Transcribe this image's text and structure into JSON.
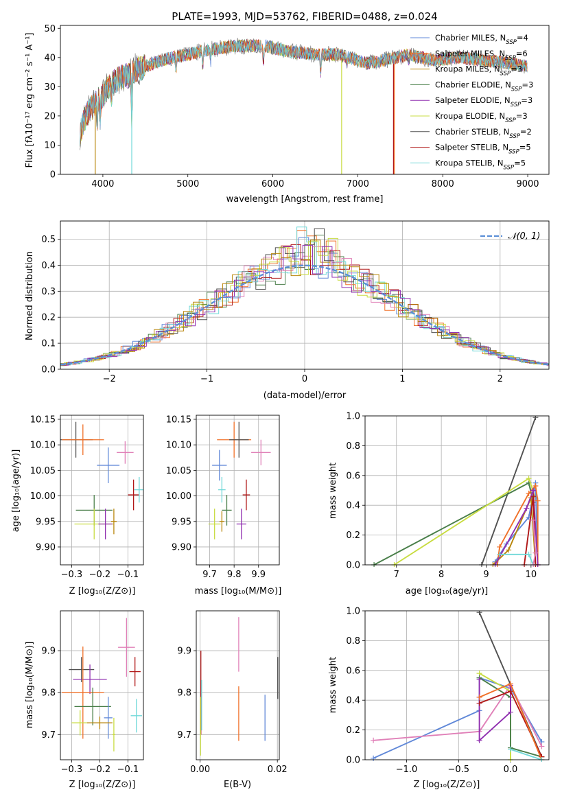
{
  "colors": [
    "#6088d8",
    "#f07028",
    "#b8860b",
    "#4a7f4a",
    "#9030b0",
    "#c8dc40",
    "#505050",
    "#b01818",
    "#70d8d8",
    "#e080b8"
  ],
  "chart_data": [
    {
      "id": "spectrum",
      "type": "line",
      "title": "PLATE=1993, MJD=53762, FIBERID=0488, z=0.024",
      "xlabel": "wavelength [Angstrom, rest frame]",
      "ylabel": "Flux [fλ10⁻¹⁷ erg cm⁻² s⁻¹ A⁻¹]",
      "xlim": [
        3500,
        9250
      ],
      "ylim": [
        0,
        51
      ],
      "xticks": [
        "4000",
        "5000",
        "6000",
        "7000",
        "8000",
        "9000"
      ],
      "yticks": [
        "0",
        "10",
        "20",
        "30",
        "40",
        "50"
      ],
      "continuum": [
        [
          3730,
          14
        ],
        [
          3800,
          20
        ],
        [
          3900,
          24
        ],
        [
          4000,
          27
        ],
        [
          4100,
          31
        ],
        [
          4200,
          33
        ],
        [
          4300,
          34
        ],
        [
          4400,
          36
        ],
        [
          4600,
          38
        ],
        [
          4800,
          40
        ],
        [
          5000,
          41
        ],
        [
          5300,
          43
        ],
        [
          5600,
          44
        ],
        [
          5900,
          44
        ],
        [
          6200,
          42
        ],
        [
          6500,
          41
        ],
        [
          6800,
          41
        ],
        [
          7100,
          38
        ],
        [
          7300,
          39
        ],
        [
          7600,
          41
        ],
        [
          7900,
          39
        ],
        [
          8200,
          40
        ],
        [
          8500,
          39
        ],
        [
          8800,
          38
        ],
        [
          9000,
          37
        ]
      ],
      "legend": [
        {
          "name": "Chabrier MILES, N",
          "sub": "SSP",
          "tail": "=4"
        },
        {
          "name": "Salpeter MILES, N",
          "sub": "SSP",
          "tail": "=6"
        },
        {
          "name": "Kroupa MILES, N",
          "sub": "SSP",
          "tail": "=3"
        },
        {
          "name": "Chabrier ELODIE, N",
          "sub": "SSP",
          "tail": "=3"
        },
        {
          "name": "Salpeter ELODIE, N",
          "sub": "SSP",
          "tail": "=3"
        },
        {
          "name": "Kroupa ELODIE, N",
          "sub": "SSP",
          "tail": "=3"
        },
        {
          "name": "Chabrier STELIB, N",
          "sub": "SSP",
          "tail": "=2"
        },
        {
          "name": "Salpeter STELIB, N",
          "sub": "SSP",
          "tail": "=5"
        },
        {
          "name": "Kroupa STELIB, N",
          "sub": "SSP",
          "tail": "=5"
        }
      ]
    },
    {
      "id": "residuals",
      "type": "step",
      "xlabel": "(data-model)/error",
      "ylabel": "Normed distribution",
      "xlim": [
        -2.5,
        2.5
      ],
      "ylim": [
        0,
        0.57
      ],
      "xticks": [
        {
          "v": -2,
          "t": "−2"
        },
        {
          "v": -1,
          "t": "−1"
        },
        {
          "v": 0,
          "t": "0"
        },
        {
          "v": 1,
          "t": "1"
        },
        {
          "v": 2,
          "t": "2"
        }
      ],
      "yticks": [
        "0.0",
        "0.1",
        "0.2",
        "0.3",
        "0.4",
        "0.5"
      ],
      "legend": "𝒩(0, 1)"
    },
    {
      "id": "age-vs-Z",
      "type": "errorbar",
      "xlabel": "Z [log₁₀(Z/Z⊙)]",
      "ylabel": "age  [log₁₀(age/yr)]",
      "xlim": [
        -0.34,
        -0.045
      ],
      "ylim": [
        9.865,
        10.158
      ],
      "xticks": [
        {
          "v": -0.3,
          "t": "−0.3"
        },
        {
          "v": -0.2,
          "t": "−0.2"
        },
        {
          "v": -0.1,
          "t": "−0.1"
        }
      ],
      "yticks": [
        {
          "v": 9.9,
          "t": "9.90"
        },
        {
          "v": 9.95,
          "t": "9.95"
        },
        {
          "v": 10.0,
          "t": "10.00"
        },
        {
          "v": 10.05,
          "t": "10.05"
        },
        {
          "v": 10.1,
          "t": "10.10"
        },
        {
          "v": 10.15,
          "t": "10.15"
        }
      ],
      "points": [
        {
          "c": 6,
          "x": -0.285,
          "y": 10.11,
          "xe": 0.06,
          "ye": 0.035
        },
        {
          "c": 1,
          "x": -0.26,
          "y": 10.11,
          "xe": 0.075,
          "ye": 0.03
        },
        {
          "c": 0,
          "x": -0.17,
          "y": 10.06,
          "xe": 0.04,
          "ye": 0.035
        },
        {
          "c": 9,
          "x": -0.11,
          "y": 10.085,
          "xe": 0.03,
          "ye": 0.022
        },
        {
          "c": 7,
          "x": -0.08,
          "y": 10.002,
          "xe": 0.02,
          "ye": 0.03
        },
        {
          "c": 8,
          "x": -0.06,
          "y": 10.012,
          "xe": 0.018,
          "ye": 0.025
        },
        {
          "c": 3,
          "x": -0.22,
          "y": 9.972,
          "xe": 0.065,
          "ye": 0.03
        },
        {
          "c": 5,
          "x": -0.22,
          "y": 9.945,
          "xe": 0.07,
          "ye": 0.03
        },
        {
          "c": 4,
          "x": -0.18,
          "y": 9.945,
          "xe": 0.025,
          "ye": 0.03
        },
        {
          "c": 2,
          "x": -0.15,
          "y": 9.95,
          "xe": 0.01,
          "ye": 0.025
        }
      ]
    },
    {
      "id": "age-vs-mass",
      "type": "errorbar",
      "xlabel": "mass [log₁₀(M/M⊙)]",
      "xlim": [
        9.645,
        9.985
      ],
      "ylim": [
        9.865,
        10.158
      ],
      "xticks": [
        {
          "v": 9.7,
          "t": "9.7"
        },
        {
          "v": 9.8,
          "t": "9.8"
        },
        {
          "v": 9.9,
          "t": "9.9"
        }
      ],
      "yticks": [
        {
          "v": 9.9,
          "t": "9.90"
        },
        {
          "v": 9.95,
          "t": "9.95"
        },
        {
          "v": 10.0,
          "t": "10.00"
        },
        {
          "v": 10.05,
          "t": "10.05"
        },
        {
          "v": 10.1,
          "t": "10.10"
        },
        {
          "v": 10.15,
          "t": "10.15"
        }
      ],
      "points": [
        {
          "c": 1,
          "x": 9.8,
          "y": 10.11,
          "xe": 0.07,
          "ye": 0.035
        },
        {
          "c": 6,
          "x": 9.82,
          "y": 10.11,
          "xe": 0.04,
          "ye": 0.035
        },
        {
          "c": 9,
          "x": 9.91,
          "y": 10.085,
          "xe": 0.04,
          "ye": 0.025
        },
        {
          "c": 0,
          "x": 9.74,
          "y": 10.06,
          "xe": 0.03,
          "ye": 0.03
        },
        {
          "c": 8,
          "x": 9.75,
          "y": 10.012,
          "xe": 0.015,
          "ye": 0.025
        },
        {
          "c": 7,
          "x": 9.85,
          "y": 10.002,
          "xe": 0.015,
          "ye": 0.03
        },
        {
          "c": 3,
          "x": 9.77,
          "y": 9.972,
          "xe": 0.02,
          "ye": 0.03
        },
        {
          "c": 5,
          "x": 9.72,
          "y": 9.945,
          "xe": 0.025,
          "ye": 0.03
        },
        {
          "c": 4,
          "x": 9.83,
          "y": 9.945,
          "xe": 0.02,
          "ye": 0.03
        },
        {
          "c": 2,
          "x": 9.75,
          "y": 9.95,
          "xe": 0.01,
          "ye": 0.02
        }
      ]
    },
    {
      "id": "mass-weight-vs-age",
      "type": "line",
      "xlabel": "age  [log₁₀(age/yr)]",
      "ylabel": "mass weight",
      "xlim": [
        6.3,
        10.4
      ],
      "ylim": [
        0,
        1.0
      ],
      "xticks": [
        {
          "v": 7,
          "t": "7"
        },
        {
          "v": 8,
          "t": "8"
        },
        {
          "v": 9,
          "t": "9"
        },
        {
          "v": 10,
          "t": "10"
        }
      ],
      "yticks": [
        {
          "v": 0,
          "t": "0.0"
        },
        {
          "v": 0.2,
          "t": "0.2"
        },
        {
          "v": 0.4,
          "t": "0.4"
        },
        {
          "v": 0.6,
          "t": "0.6"
        },
        {
          "v": 0.8,
          "t": "0.8"
        },
        {
          "v": 1.0,
          "t": "1.0"
        }
      ],
      "lines": [
        {
          "c": 6,
          "pts": [
            [
              8.9,
              0.0
            ],
            [
              10.1,
              0.99
            ]
          ]
        },
        {
          "c": 3,
          "pts": [
            [
              6.5,
              0.0
            ],
            [
              9.95,
              0.55
            ],
            [
              10.05,
              0.42
            ]
          ]
        },
        {
          "c": 5,
          "pts": [
            [
              6.95,
              0.0
            ],
            [
              9.95,
              0.58
            ],
            [
              10.1,
              0.45
            ]
          ]
        },
        {
          "c": 0,
          "pts": [
            [
              9.2,
              0.02
            ],
            [
              9.45,
              0.14
            ],
            [
              9.95,
              0.32
            ],
            [
              10.1,
              0.55
            ],
            [
              10.15,
              0.0
            ]
          ]
        },
        {
          "c": 1,
          "pts": [
            [
              9.25,
              0.0
            ],
            [
              9.3,
              0.12
            ],
            [
              9.95,
              0.48
            ],
            [
              10.1,
              0.53
            ],
            [
              10.15,
              0.43
            ],
            [
              10.15,
              0.0
            ]
          ]
        },
        {
          "c": 2,
          "pts": [
            [
              9.15,
              0.0
            ],
            [
              9.5,
              0.1
            ],
            [
              10.0,
              0.45
            ],
            [
              10.1,
              0.0
            ]
          ]
        },
        {
          "c": 4,
          "pts": [
            [
              9.2,
              0.0
            ],
            [
              9.9,
              0.38
            ],
            [
              10.05,
              0.5
            ],
            [
              10.15,
              0.0
            ]
          ]
        },
        {
          "c": 7,
          "pts": [
            [
              9.85,
              0.0
            ],
            [
              10.05,
              0.46
            ],
            [
              10.1,
              0.0
            ]
          ]
        },
        {
          "c": 8,
          "pts": [
            [
              9.3,
              0.07
            ],
            [
              9.95,
              0.07
            ],
            [
              10.05,
              0.0
            ]
          ]
        },
        {
          "c": 9,
          "pts": [
            [
              10.05,
              0.0
            ],
            [
              10.1,
              0.08
            ],
            [
              10.05,
              0.3
            ]
          ]
        }
      ]
    },
    {
      "id": "mass-vs-Z",
      "type": "errorbar",
      "xlabel": "Z [log₁₀(Z/Z⊙)]",
      "ylabel": "mass [log₁₀(M/M⊙)]",
      "xlim": [
        -0.34,
        -0.045
      ],
      "ylim": [
        9.64,
        9.995
      ],
      "xticks": [
        {
          "v": -0.3,
          "t": "−0.3"
        },
        {
          "v": -0.2,
          "t": "−0.2"
        },
        {
          "v": -0.1,
          "t": "−0.1"
        }
      ],
      "yticks": [
        {
          "v": 9.7,
          "t": "9.7"
        },
        {
          "v": 9.8,
          "t": "9.8"
        },
        {
          "v": 9.9,
          "t": "9.9"
        }
      ],
      "points": [
        {
          "c": 6,
          "x": -0.265,
          "y": 9.855,
          "xe": 0.045,
          "ye": 0.03
        },
        {
          "c": 4,
          "x": -0.235,
          "y": 9.832,
          "xe": 0.06,
          "ye": 0.035
        },
        {
          "c": 9,
          "x": -0.105,
          "y": 9.908,
          "xe": 0.03,
          "ye": 0.07
        },
        {
          "c": 7,
          "x": -0.075,
          "y": 9.85,
          "xe": 0.02,
          "ye": 0.035
        },
        {
          "c": 1,
          "x": -0.26,
          "y": 9.8,
          "xe": 0.075,
          "ye": 0.11
        },
        {
          "c": 3,
          "x": -0.225,
          "y": 9.767,
          "xe": 0.065,
          "ye": 0.045
        },
        {
          "c": 0,
          "x": -0.17,
          "y": 9.74,
          "xe": 0.015,
          "ye": 0.05
        },
        {
          "c": 8,
          "x": -0.07,
          "y": 9.745,
          "xe": 0.02,
          "ye": 0.04
        },
        {
          "c": 5,
          "x": -0.27,
          "y": 9.728,
          "xe": 0.03,
          "ye": 0.03
        },
        {
          "c": 2,
          "x": -0.2,
          "y": 9.728,
          "xe": 0.045,
          "ye": 0.015
        },
        {
          "c": 5,
          "x": -0.15,
          "y": 9.7,
          "xe": 0.005,
          "ye": 0.04
        }
      ]
    },
    {
      "id": "mass-vs-EBV",
      "type": "errorbar",
      "xlabel": "E(B-V)",
      "xlim": [
        -0.001,
        0.0205
      ],
      "ylim": [
        9.64,
        9.995
      ],
      "xticks": [
        {
          "v": 0.0,
          "t": "0.00"
        },
        {
          "v": 0.02,
          "t": "0.02"
        }
      ],
      "yticks": [
        {
          "v": 9.7,
          "t": "9.7"
        },
        {
          "v": 9.8,
          "t": "9.8"
        },
        {
          "v": 9.9,
          "t": "9.9"
        }
      ],
      "points": [
        {
          "c": 7,
          "x": 0.0002,
          "y": 9.8,
          "xe": 0,
          "ye": 0.1
        },
        {
          "c": 8,
          "x": 0.0004,
          "y": 9.77,
          "xe": 0,
          "ye": 0.06
        },
        {
          "c": 5,
          "x": 0.0001,
          "y": 9.72,
          "xe": 0,
          "ye": 0.07
        },
        {
          "c": 9,
          "x": 0.01,
          "y": 9.915,
          "xe": 0,
          "ye": 0.065
        },
        {
          "c": 1,
          "x": 0.01,
          "y": 9.75,
          "xe": 0,
          "ye": 0.065
        },
        {
          "c": 0,
          "x": 0.0168,
          "y": 9.74,
          "xe": 0,
          "ye": 0.055
        },
        {
          "c": 6,
          "x": 0.0201,
          "y": 9.835,
          "xe": 0,
          "ye": 0.05
        }
      ]
    },
    {
      "id": "mass-weight-vs-Z",
      "type": "line",
      "xlabel": "Z [log₁₀(Z/Z⊙)]",
      "ylabel": "mass weight",
      "xlim": [
        -1.4,
        0.37
      ],
      "ylim": [
        0,
        1.0
      ],
      "xticks": [
        {
          "v": -1.0,
          "t": "−1.0"
        },
        {
          "v": -0.5,
          "t": "−0.5"
        },
        {
          "v": 0.0,
          "t": "0.0"
        }
      ],
      "yticks": [
        {
          "v": 0,
          "t": "0.0"
        },
        {
          "v": 0.2,
          "t": "0.2"
        },
        {
          "v": 0.4,
          "t": "0.4"
        },
        {
          "v": 0.6,
          "t": "0.6"
        },
        {
          "v": 0.8,
          "t": "0.8"
        },
        {
          "v": 1.0,
          "t": "1.0"
        }
      ],
      "lines": [
        {
          "c": 6,
          "pts": [
            [
              -0.3,
              0.99
            ],
            [
              0.3,
              0.02
            ]
          ]
        },
        {
          "c": 0,
          "pts": [
            [
              -1.32,
              0.01
            ],
            [
              -0.3,
              0.33
            ],
            [
              -0.3,
              0.55
            ],
            [
              0.0,
              0.48
            ],
            [
              0.3,
              0.12
            ]
          ]
        },
        {
          "c": 9,
          "pts": [
            [
              -1.32,
              0.13
            ],
            [
              -0.3,
              0.19
            ],
            [
              0.0,
              0.5
            ],
            [
              0.3,
              0.09
            ]
          ]
        },
        {
          "c": 5,
          "pts": [
            [
              -0.3,
              0.58
            ],
            [
              0.0,
              0.46
            ],
            [
              0.0,
              0.0
            ]
          ]
        },
        {
          "c": 3,
          "pts": [
            [
              -0.3,
              0.55
            ],
            [
              0.0,
              0.42
            ],
            [
              0.0,
              0.08
            ],
            [
              0.3,
              0.02
            ]
          ]
        },
        {
          "c": 4,
          "pts": [
            [
              -0.3,
              0.54
            ],
            [
              -0.3,
              0.13
            ],
            [
              0.0,
              0.32
            ],
            [
              0.0,
              0.5
            ]
          ]
        },
        {
          "c": 7,
          "pts": [
            [
              -0.3,
              0.38
            ],
            [
              0.0,
              0.46
            ],
            [
              0.3,
              0.02
            ]
          ]
        },
        {
          "c": 1,
          "pts": [
            [
              -0.3,
              0.42
            ],
            [
              0.0,
              0.51
            ],
            [
              0.3,
              0.0
            ]
          ]
        },
        {
          "c": 8,
          "pts": [
            [
              0.0,
              0.07
            ],
            [
              0.3,
              0.0
            ]
          ]
        }
      ]
    }
  ]
}
